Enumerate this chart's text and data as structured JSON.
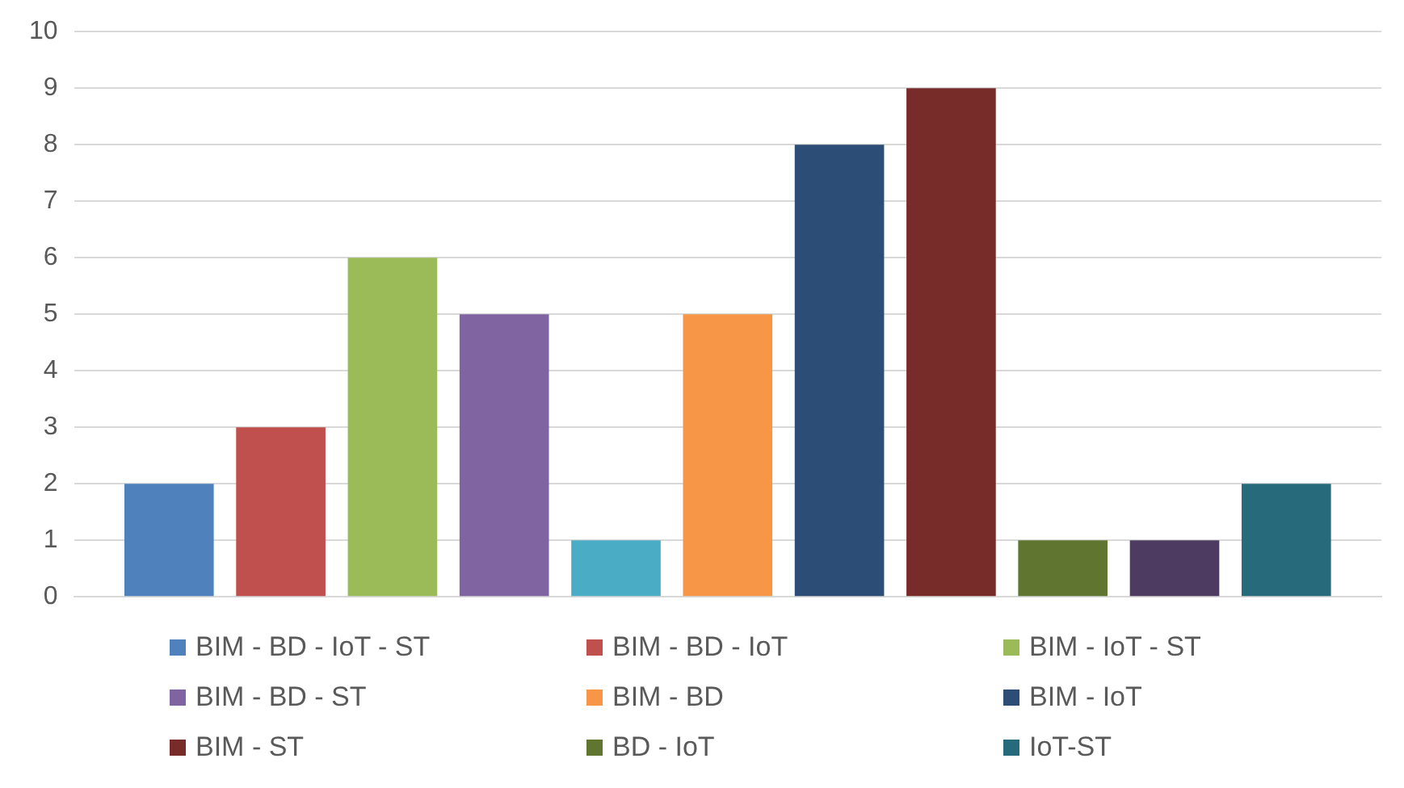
{
  "chart_data": {
    "type": "bar",
    "categories": [
      null
    ],
    "series": [
      {
        "name": "BIM - BD - IoT - ST",
        "color": "#4f81bd",
        "values": [
          2
        ]
      },
      {
        "name": "BIM - BD - IoT",
        "color": "#c0504d",
        "values": [
          3
        ]
      },
      {
        "name": "BIM - IoT - ST",
        "color": "#9bbb59",
        "values": [
          6
        ]
      },
      {
        "name": "BIM - BD - ST",
        "color": "#8064a2",
        "values": [
          5
        ]
      },
      {
        "color": "#4bacc6",
        "values": [
          1
        ]
      },
      {
        "name": "BIM - BD",
        "color": "#f79646",
        "values": [
          5
        ]
      },
      {
        "name": "BIM - IoT",
        "color": "#2c4d75",
        "values": [
          8
        ]
      },
      {
        "name": "BIM - ST",
        "color": "#772c2a",
        "values": [
          9
        ]
      },
      {
        "name": "BD - IoT",
        "color": "#5f7530",
        "values": [
          1
        ]
      },
      {
        "color": "#4d3b62",
        "values": [
          1
        ]
      },
      {
        "name": "IoT-ST",
        "color": "#276a7c",
        "values": [
          2
        ]
      }
    ],
    "ylim": [
      0,
      10
    ],
    "yticks": [
      0,
      1,
      2,
      3,
      4,
      5,
      6,
      7,
      8,
      9,
      10
    ],
    "grid": "y",
    "legend": "bottom"
  }
}
